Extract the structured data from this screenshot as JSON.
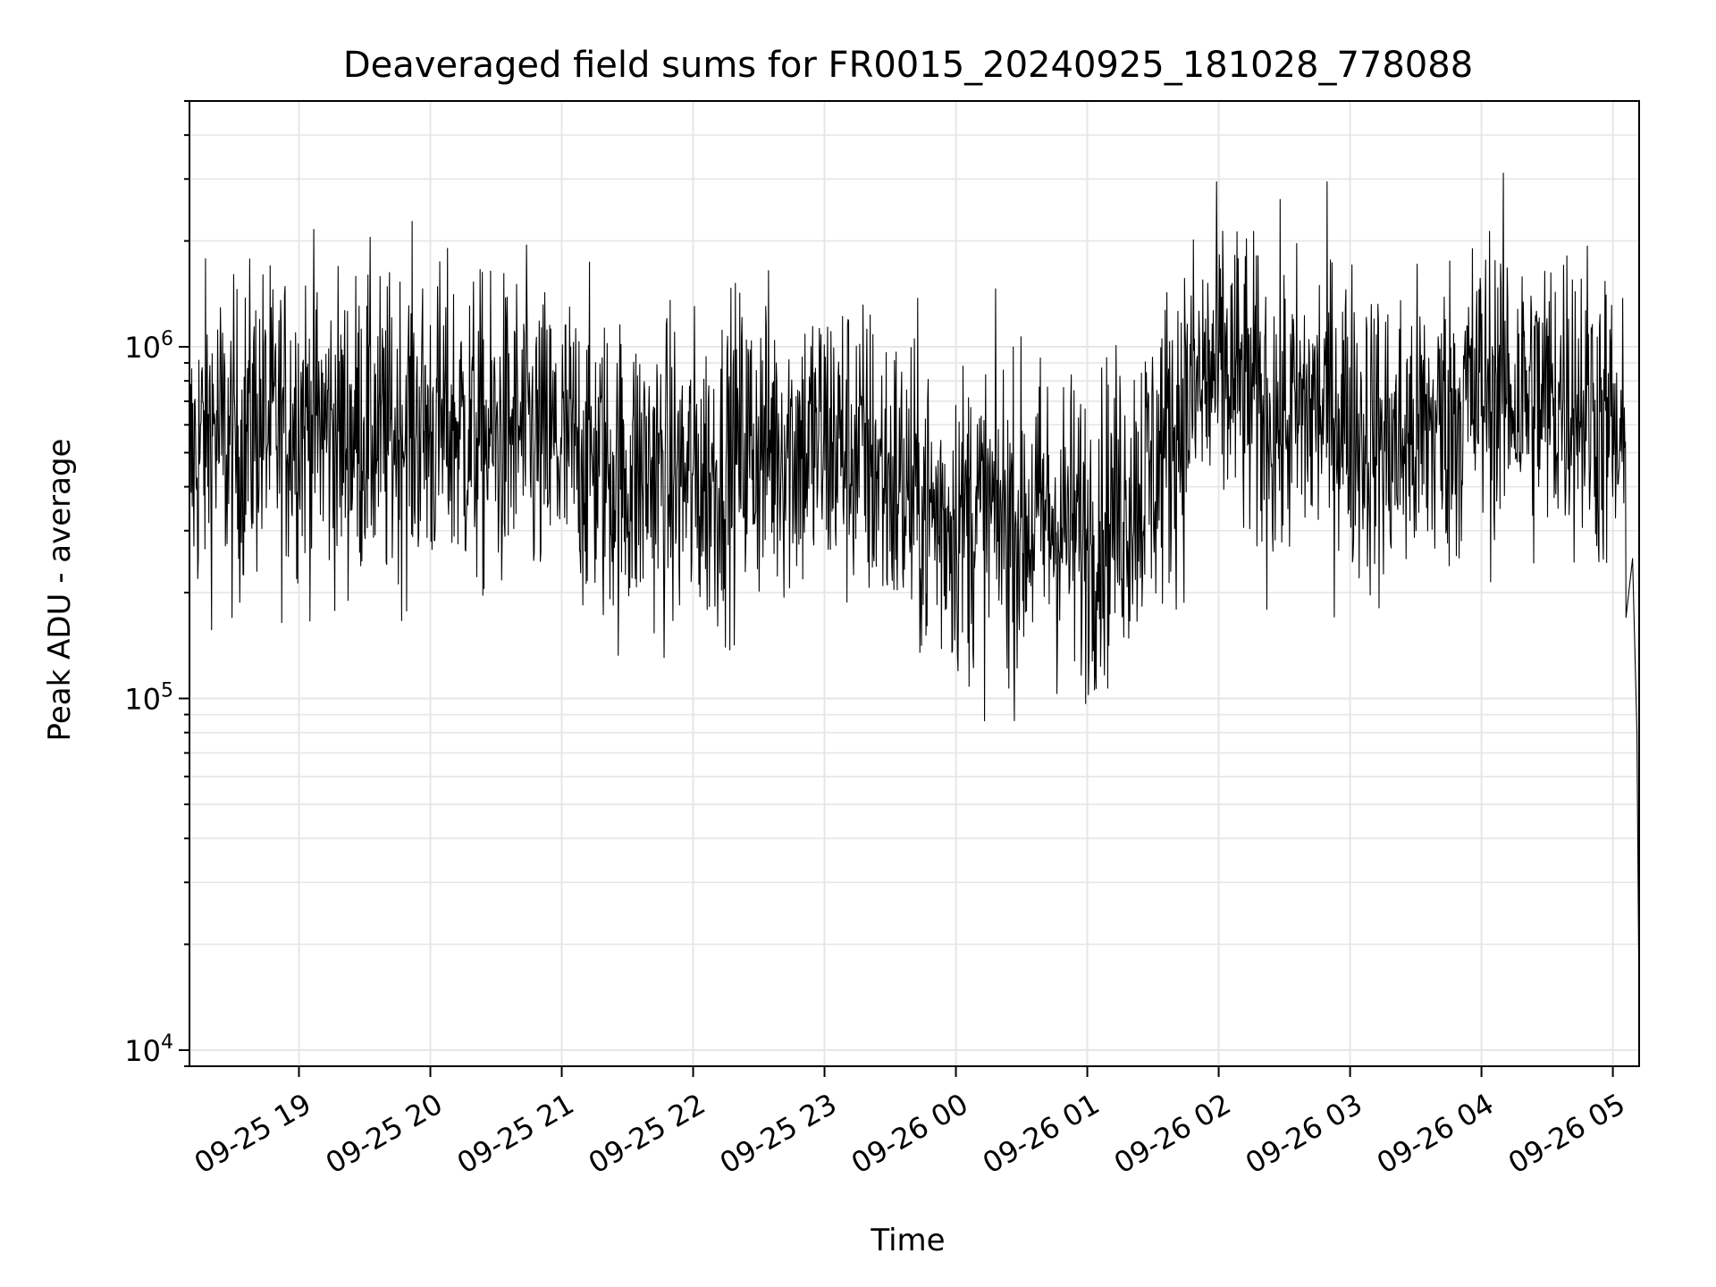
{
  "chart_data": {
    "type": "line",
    "title": "Deaveraged field sums for FR0015_20240925_181028_778088",
    "xlabel": "Time",
    "ylabel": "Peak ADU - average",
    "y_scale": "log",
    "ylim": [
      9000,
      5000000
    ],
    "xlim": [
      "2024-09-25 18:10",
      "2024-09-26 05:12"
    ],
    "grid": true,
    "line_color": "#000000",
    "grid_color": "#e6e6e6",
    "y_ticks": [
      {
        "value": 10000,
        "base": "10",
        "exp": "4"
      },
      {
        "value": 100000,
        "base": "10",
        "exp": "5"
      },
      {
        "value": 1000000,
        "base": "10",
        "exp": "6"
      }
    ],
    "x_ticks": [
      {
        "time": "2024-09-25 19:00",
        "label": "09-25 19"
      },
      {
        "time": "2024-09-25 20:00",
        "label": "09-25 20"
      },
      {
        "time": "2024-09-25 21:00",
        "label": "09-25 21"
      },
      {
        "time": "2024-09-25 22:00",
        "label": "09-25 22"
      },
      {
        "time": "2024-09-25 23:00",
        "label": "09-25 23"
      },
      {
        "time": "2024-09-26 00:00",
        "label": "09-26 00"
      },
      {
        "time": "2024-09-26 01:00",
        "label": "09-26 01"
      },
      {
        "time": "2024-09-26 02:00",
        "label": "09-26 02"
      },
      {
        "time": "2024-09-26 03:00",
        "label": "09-26 03"
      },
      {
        "time": "2024-09-26 04:00",
        "label": "09-26 04"
      },
      {
        "time": "2024-09-26 05:00",
        "label": "09-26 05"
      }
    ],
    "series": [
      {
        "points": [
          [
            "2024-09-25 18:10",
            450000
          ],
          [
            "2024-09-25 18:20",
            600000
          ],
          [
            "2024-09-25 18:30",
            500000
          ],
          [
            "2024-09-25 18:40",
            620000
          ],
          [
            "2024-09-25 18:50",
            580000
          ],
          [
            "2024-09-25 19:00",
            650000
          ],
          [
            "2024-09-25 19:10",
            600000
          ],
          [
            "2024-09-25 19:20",
            560000
          ],
          [
            "2024-09-25 19:30",
            600000
          ],
          [
            "2024-09-25 19:40",
            550000
          ],
          [
            "2024-09-25 19:50",
            620000
          ],
          [
            "2024-09-25 20:00",
            580000
          ],
          [
            "2024-09-25 20:10",
            600000
          ],
          [
            "2024-09-25 20:20",
            560000
          ],
          [
            "2024-09-25 20:30",
            540000
          ],
          [
            "2024-09-25 20:40",
            580000
          ],
          [
            "2024-09-25 20:50",
            520000
          ],
          [
            "2024-09-25 21:00",
            520000
          ],
          [
            "2024-09-25 21:10",
            500000
          ],
          [
            "2024-09-25 21:20",
            450000
          ],
          [
            "2024-09-25 21:30",
            420000
          ],
          [
            "2024-09-25 21:40",
            450000
          ],
          [
            "2024-09-25 21:50",
            420000
          ],
          [
            "2024-09-25 22:00",
            420000
          ],
          [
            "2024-09-25 22:10",
            430000
          ],
          [
            "2024-09-25 22:20",
            520000
          ],
          [
            "2024-09-25 22:30",
            520000
          ],
          [
            "2024-09-25 22:40",
            540000
          ],
          [
            "2024-09-25 22:50",
            520000
          ],
          [
            "2024-09-25 23:00",
            540000
          ],
          [
            "2024-09-25 23:10",
            520000
          ],
          [
            "2024-09-25 23:20",
            480000
          ],
          [
            "2024-09-25 23:30",
            420000
          ],
          [
            "2024-09-25 23:40",
            380000
          ],
          [
            "2024-09-25 23:50",
            330000
          ],
          [
            "2024-09-26 00:00",
            330000
          ],
          [
            "2024-09-26 00:10",
            330000
          ],
          [
            "2024-09-26 00:20",
            330000
          ],
          [
            "2024-09-26 00:30",
            310000
          ],
          [
            "2024-09-26 00:40",
            330000
          ],
          [
            "2024-09-26 00:50",
            310000
          ],
          [
            "2024-09-26 01:00",
            290000
          ],
          [
            "2024-09-26 01:10",
            330000
          ],
          [
            "2024-09-26 01:20",
            380000
          ],
          [
            "2024-09-26 01:30",
            450000
          ],
          [
            "2024-09-26 01:40",
            600000
          ],
          [
            "2024-09-26 01:50",
            750000
          ],
          [
            "2024-09-26 02:00",
            850000
          ],
          [
            "2024-09-26 02:10",
            780000
          ],
          [
            "2024-09-26 02:20",
            650000
          ],
          [
            "2024-09-26 02:30",
            620000
          ],
          [
            "2024-09-26 02:40",
            650000
          ],
          [
            "2024-09-26 02:50",
            700000
          ],
          [
            "2024-09-26 03:00",
            620000
          ],
          [
            "2024-09-26 03:10",
            550000
          ],
          [
            "2024-09-26 03:20",
            520000
          ],
          [
            "2024-09-26 03:30",
            560000
          ],
          [
            "2024-09-26 03:40",
            600000
          ],
          [
            "2024-09-26 03:50",
            680000
          ],
          [
            "2024-09-26 04:00",
            760000
          ],
          [
            "2024-09-26 04:10",
            780000
          ],
          [
            "2024-09-26 04:20",
            720000
          ],
          [
            "2024-09-26 04:30",
            700000
          ],
          [
            "2024-09-26 04:40",
            760000
          ],
          [
            "2024-09-26 04:50",
            680000
          ],
          [
            "2024-09-26 05:00",
            560000
          ],
          [
            "2024-09-26 05:06",
            420000
          ],
          [
            "2024-09-26 05:09",
            250000
          ],
          [
            "2024-09-26 05:11",
            80000
          ],
          [
            "2024-09-26 05:12",
            12500
          ]
        ]
      }
    ]
  }
}
